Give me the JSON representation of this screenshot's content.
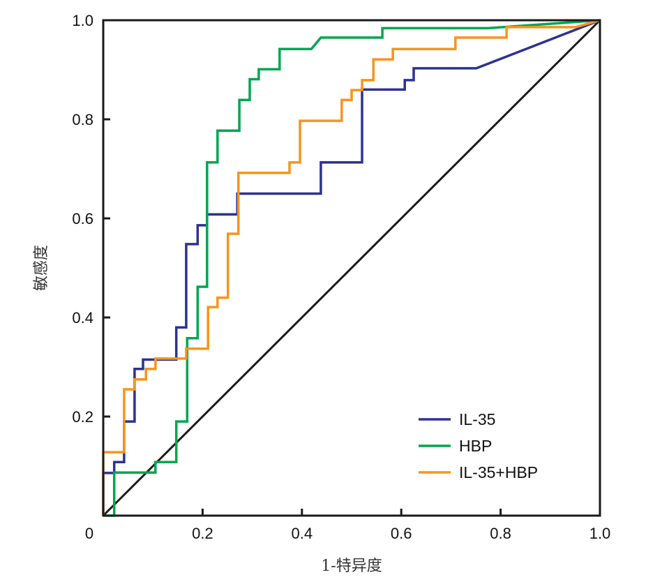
{
  "chart_data": {
    "type": "line",
    "title": "",
    "xlabel": "1-特异度",
    "ylabel": "敏感度",
    "xlim": [
      0,
      1
    ],
    "ylim": [
      0,
      1
    ],
    "grid": false,
    "legend_position": "bottom-right",
    "xticks": [
      0,
      0.2,
      0.4,
      0.6,
      0.8,
      1.0
    ],
    "xtick_labels": [
      "0",
      "0.2",
      "0.4",
      "0.6",
      "0.8",
      "1.0"
    ],
    "yticks": [
      0.2,
      0.4,
      0.6,
      0.8,
      1.0
    ],
    "ytick_labels": [
      "0.2",
      "0.4",
      "0.6",
      "0.8",
      "1.0"
    ],
    "reference_line": {
      "x": [
        0,
        1
      ],
      "y": [
        0,
        1
      ],
      "color": "#1a1a1a"
    },
    "series": [
      {
        "name": "IL-35",
        "color": "#2e3192",
        "x": [
          0,
          0,
          0.022,
          0.022,
          0.042,
          0.042,
          0.063,
          0.063,
          0.08,
          0.08,
          0.147,
          0.147,
          0.167,
          0.167,
          0.19,
          0.19,
          0.209,
          0.209,
          0.27,
          0.27,
          0.438,
          0.438,
          0.521,
          0.521,
          0.607,
          0.607,
          0.625,
          0.625,
          0.751,
          1
        ],
        "y": [
          0,
          0.086,
          0.086,
          0.108,
          0.108,
          0.19,
          0.19,
          0.296,
          0.296,
          0.315,
          0.315,
          0.38,
          0.38,
          0.548,
          0.548,
          0.586,
          0.586,
          0.608,
          0.608,
          0.65,
          0.65,
          0.713,
          0.713,
          0.86,
          0.86,
          0.879,
          0.879,
          0.903,
          0.903,
          1
        ]
      },
      {
        "name": "HBP",
        "color": "#00a651",
        "x": [
          0,
          0.022,
          0.022,
          0.105,
          0.105,
          0.147,
          0.147,
          0.169,
          0.169,
          0.19,
          0.19,
          0.209,
          0.209,
          0.23,
          0.23,
          0.274,
          0.274,
          0.295,
          0.295,
          0.313,
          0.313,
          0.355,
          0.355,
          0.419,
          0.438,
          0.562,
          0.562,
          0.775,
          1
        ],
        "y": [
          0,
          0,
          0.087,
          0.087,
          0.108,
          0.108,
          0.19,
          0.19,
          0.358,
          0.358,
          0.462,
          0.462,
          0.713,
          0.713,
          0.777,
          0.777,
          0.839,
          0.839,
          0.881,
          0.881,
          0.901,
          0.901,
          0.942,
          0.942,
          0.965,
          0.965,
          0.984,
          0.984,
          1
        ]
      },
      {
        "name": "IL-35+HBP",
        "color": "#f7941d",
        "x": [
          0,
          0,
          0.042,
          0.042,
          0.063,
          0.063,
          0.086,
          0.086,
          0.105,
          0.105,
          0.167,
          0.167,
          0.211,
          0.211,
          0.23,
          0.23,
          0.251,
          0.251,
          0.272,
          0.272,
          0.375,
          0.375,
          0.396,
          0.396,
          0.48,
          0.48,
          0.5,
          0.5,
          0.521,
          0.521,
          0.544,
          0.544,
          0.583,
          0.583,
          0.709,
          0.709,
          0.812,
          0.812,
          0.951,
          1
        ],
        "y": [
          0,
          0.128,
          0.128,
          0.255,
          0.255,
          0.275,
          0.275,
          0.296,
          0.296,
          0.317,
          0.317,
          0.337,
          0.337,
          0.421,
          0.421,
          0.44,
          0.44,
          0.569,
          0.569,
          0.692,
          0.692,
          0.713,
          0.713,
          0.797,
          0.797,
          0.839,
          0.839,
          0.859,
          0.859,
          0.879,
          0.879,
          0.921,
          0.921,
          0.942,
          0.942,
          0.965,
          0.965,
          0.986,
          0.986,
          1
        ]
      }
    ]
  }
}
